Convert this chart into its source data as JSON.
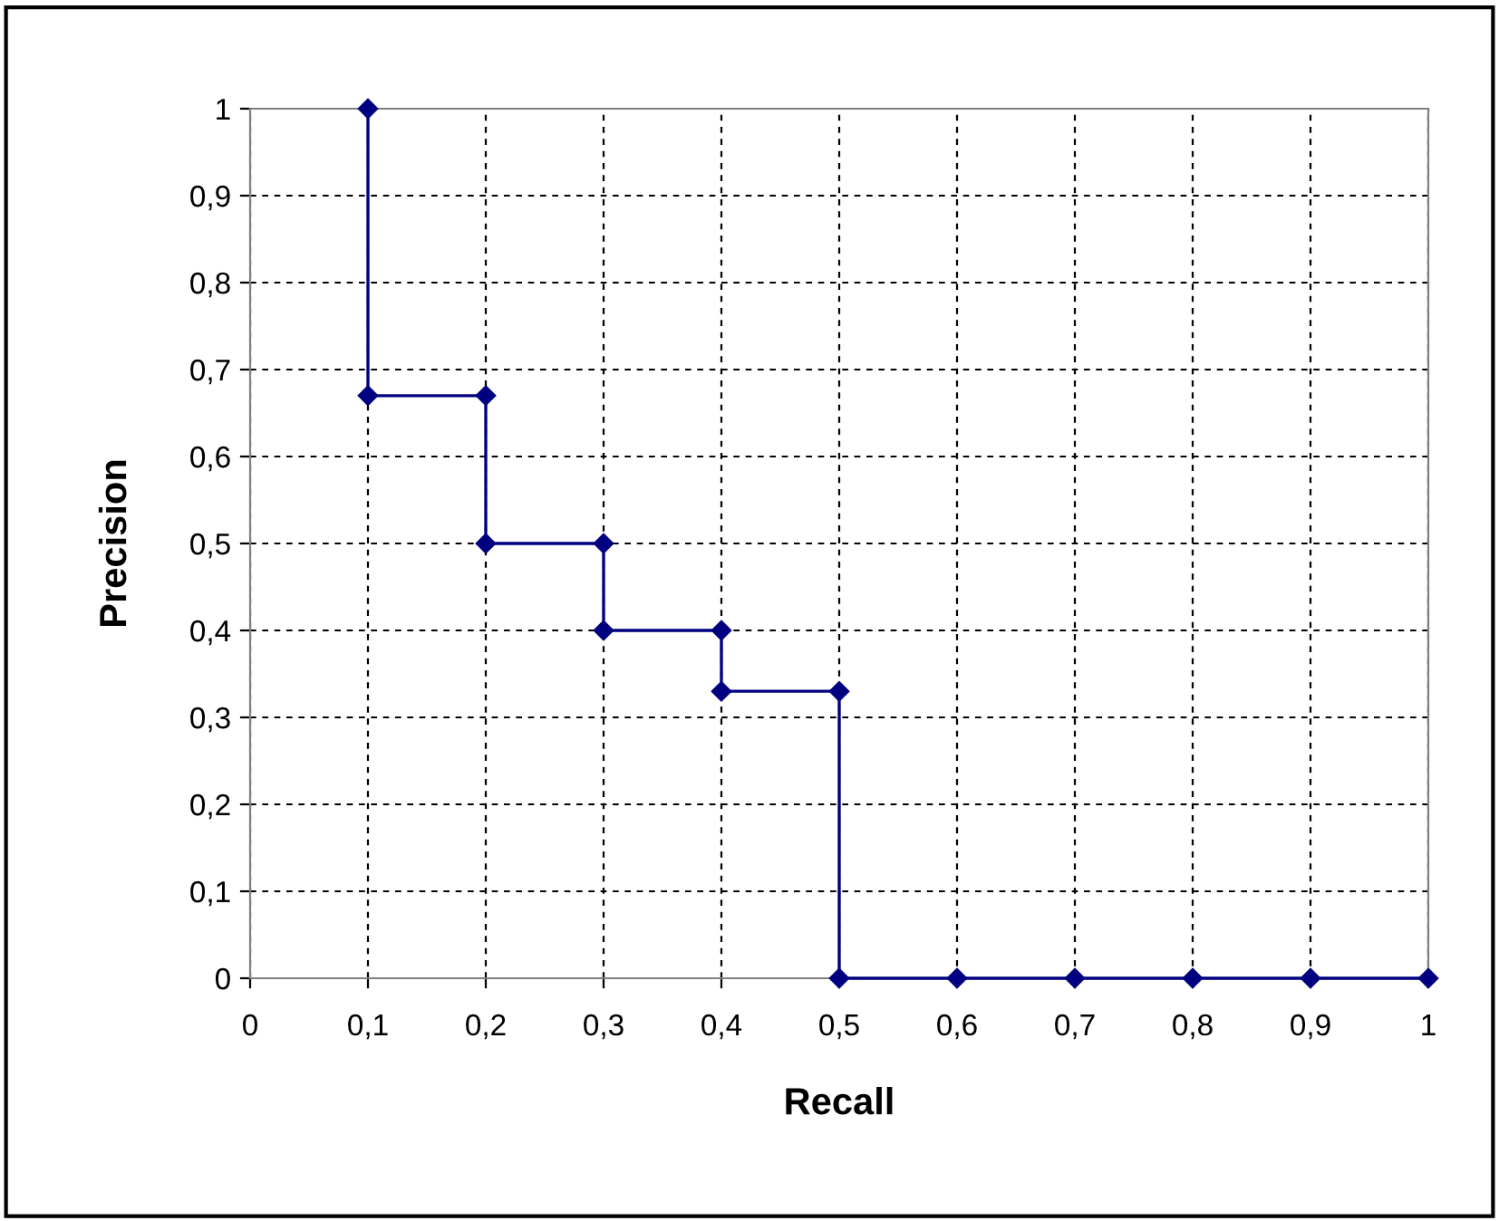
{
  "chart_data": {
    "type": "line",
    "xlabel": "Recall",
    "ylabel": "Precision",
    "x": [
      0.1,
      0.1,
      0.2,
      0.2,
      0.3,
      0.3,
      0.4,
      0.4,
      0.5,
      0.5,
      0.6,
      0.7,
      0.8,
      0.9,
      1
    ],
    "series": [
      {
        "color": "#000080",
        "values": [
          1,
          0.67,
          0.67,
          0.5,
          0.5,
          0.4,
          0.4,
          0.33,
          0.33,
          0,
          0,
          0,
          0,
          0,
          0
        ]
      }
    ],
    "marker": "diamond",
    "line_style": "solid",
    "grid": true,
    "xlim": [
      0,
      1
    ],
    "ylim": [
      0,
      1
    ],
    "xticks": [
      0,
      {
        "value": 0.1,
        "label": "0,1"
      },
      {
        "value": 0.2,
        "label": "0,2"
      },
      {
        "value": 0.3,
        "label": "0,3"
      },
      {
        "value": 0.4,
        "label": "0,4"
      },
      {
        "value": 0.5,
        "label": "0,5"
      },
      {
        "value": 0.6,
        "label": "0,6"
      },
      {
        "value": 0.7,
        "label": "0,7"
      },
      {
        "value": 0.8,
        "label": "0,8"
      },
      {
        "value": 0.9,
        "label": "0,9"
      },
      1
    ],
    "yticks": [
      0,
      {
        "value": 0.1,
        "label": "0,1"
      },
      {
        "value": 0.2,
        "label": "0,2"
      },
      {
        "value": 0.3,
        "label": "0,3"
      },
      {
        "value": 0.4,
        "label": "0,4"
      },
      {
        "value": 0.5,
        "label": "0,5"
      },
      {
        "value": 0.6,
        "label": "0,6"
      },
      {
        "value": 0.7,
        "label": "0,7"
      },
      {
        "value": 0.8,
        "label": "0,8"
      },
      {
        "value": 0.9,
        "label": "0,9"
      },
      1
    ]
  }
}
